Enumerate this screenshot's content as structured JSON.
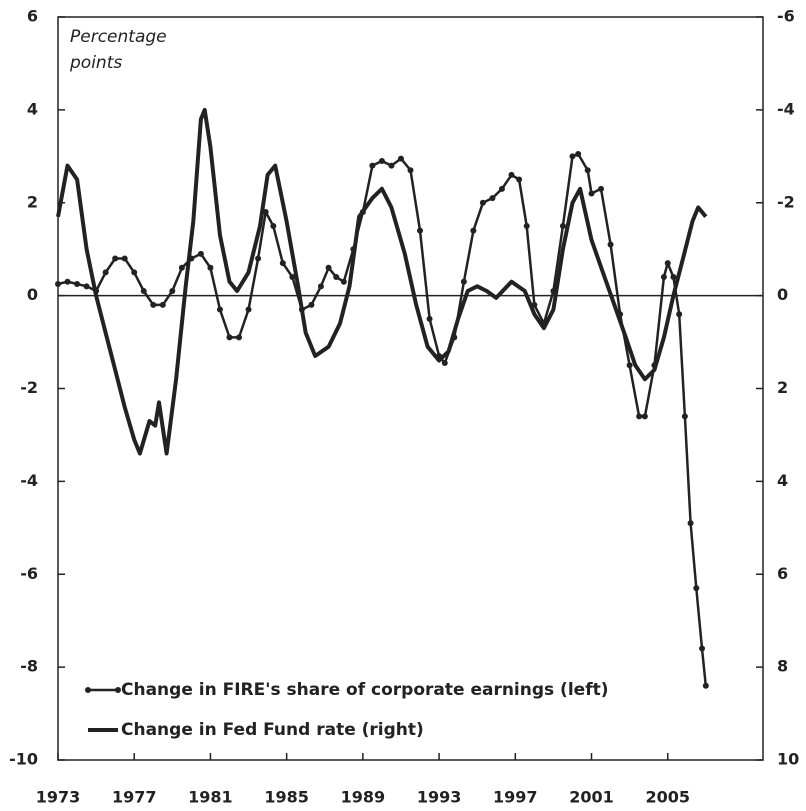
{
  "chart_data": {
    "type": "line",
    "annotation": "Percentage points",
    "xlim": [
      1973,
      2010
    ],
    "xticks": [
      1973,
      1977,
      1981,
      1985,
      1989,
      1993,
      1997,
      2001,
      2005
    ],
    "ylim": [
      -10,
      6
    ],
    "yticks": [
      -10,
      -8,
      -6,
      -4,
      -2,
      0,
      2,
      4,
      6
    ],
    "y2lim": [
      10,
      -6
    ],
    "y2ticks": [
      10,
      8,
      6,
      4,
      2,
      0,
      -2,
      -4,
      -6
    ],
    "zero_line": true,
    "legend": "lower left",
    "series": [
      {
        "name": "Change in FIRE's share of corporate earnings (left)",
        "color": "#222222",
        "markers": true,
        "axis": "y",
        "x": [
          1973,
          1973.5,
          1974,
          1974.5,
          1975,
          1975.5,
          1976,
          1976.5,
          1977,
          1977.5,
          1978,
          1978.5,
          1979,
          1979.5,
          1980,
          1980.5,
          1981,
          1981.5,
          1982,
          1982.5,
          1983,
          1983.5,
          1983.9,
          1984.3,
          1984.8,
          1985.3,
          1985.8,
          1986.3,
          1986.8,
          1987.2,
          1987.6,
          1988,
          1988.5,
          1989,
          1989.5,
          1990,
          1990.5,
          1991,
          1991.5,
          1992,
          1992.5,
          1993,
          1993.3,
          1993.8,
          1994.3,
          1994.8,
          1995.3,
          1995.8,
          1996.3,
          1996.8,
          1997.2,
          1997.6,
          1998,
          1998.5,
          1999,
          1999.5,
          2000,
          2000.3,
          2000.8,
          2001,
          2001.5,
          2002,
          2002.5,
          2003,
          2003.5,
          2003.8,
          2004.3,
          2004.8,
          2005,
          2005.3,
          2005.6,
          2005.9,
          2006.2,
          2006.5,
          2006.8,
          2007
        ],
        "values": [
          0.25,
          0.3,
          0.25,
          0.2,
          0.1,
          0.5,
          0.8,
          0.8,
          0.5,
          0.1,
          -0.2,
          -0.2,
          0.1,
          0.6,
          0.8,
          0.9,
          0.6,
          -0.3,
          -0.9,
          -0.9,
          -0.3,
          0.8,
          1.8,
          1.5,
          0.7,
          0.4,
          -0.3,
          -0.2,
          0.2,
          0.6,
          0.4,
          0.3,
          1.0,
          1.8,
          2.8,
          2.9,
          2.8,
          2.95,
          2.7,
          1.4,
          -0.5,
          -1.3,
          -1.45,
          -0.9,
          0.3,
          1.4,
          2.0,
          2.1,
          2.3,
          2.6,
          2.5,
          1.5,
          -0.2,
          -0.6,
          0.1,
          1.5,
          3.0,
          3.05,
          2.7,
          2.2,
          2.3,
          1.1,
          -0.4,
          -1.5,
          -2.6,
          -2.6,
          -1.5,
          0.4,
          0.7,
          0.4,
          -0.4,
          -2.6,
          -4.9,
          -6.3,
          -7.6,
          -8.4
        ]
      },
      {
        "name": "Change in Fed Fund rate (right)",
        "color": "#222222",
        "markers": false,
        "axis": "y2",
        "x": [
          1973,
          1973.5,
          1974,
          1974.5,
          1975,
          1975.5,
          1976,
          1976.5,
          1977,
          1977.3,
          1977.8,
          1978.1,
          1978.3,
          1978.7,
          1979.2,
          1979.7,
          1980.1,
          1980.5,
          1980.7,
          1981,
          1981.5,
          1982,
          1982.4,
          1983,
          1983.6,
          1984,
          1984.4,
          1985,
          1985.6,
          1986,
          1986.5,
          1987.2,
          1987.8,
          1988.3,
          1988.8,
          1989.5,
          1990,
          1990.5,
          1991.2,
          1991.8,
          1992.4,
          1993,
          1993.5,
          1994,
          1994.5,
          1995,
          1995.5,
          1996,
          1996.8,
          1997.5,
          1998,
          1998.5,
          1999,
          1999.5,
          2000,
          2000.4,
          2001,
          2001.6,
          2002.2,
          2002.8,
          2003.3,
          2003.8,
          2004.3,
          2004.8,
          2005.3,
          2005.8,
          2006.3,
          2006.6,
          2007
        ],
        "values": [
          -1.7,
          -2.8,
          -2.5,
          -1.0,
          0.0,
          0.8,
          1.6,
          2.4,
          3.1,
          3.4,
          2.7,
          2.8,
          2.3,
          3.4,
          1.8,
          -0.2,
          -1.6,
          -3.8,
          -4.0,
          -3.2,
          -1.3,
          -0.3,
          -0.1,
          -0.5,
          -1.5,
          -2.6,
          -2.8,
          -1.6,
          -0.2,
          0.8,
          1.3,
          1.1,
          0.6,
          -0.2,
          -1.7,
          -2.1,
          -2.3,
          -1.9,
          -0.9,
          0.2,
          1.1,
          1.4,
          1.2,
          0.5,
          -0.1,
          -0.2,
          -0.1,
          0.05,
          -0.3,
          -0.1,
          0.4,
          0.7,
          0.3,
          -1.0,
          -2.0,
          -2.3,
          -1.2,
          -0.5,
          0.2,
          0.9,
          1.5,
          1.8,
          1.6,
          0.9,
          0.0,
          -0.8,
          -1.6,
          -1.9,
          -1.7
        ]
      }
    ]
  }
}
